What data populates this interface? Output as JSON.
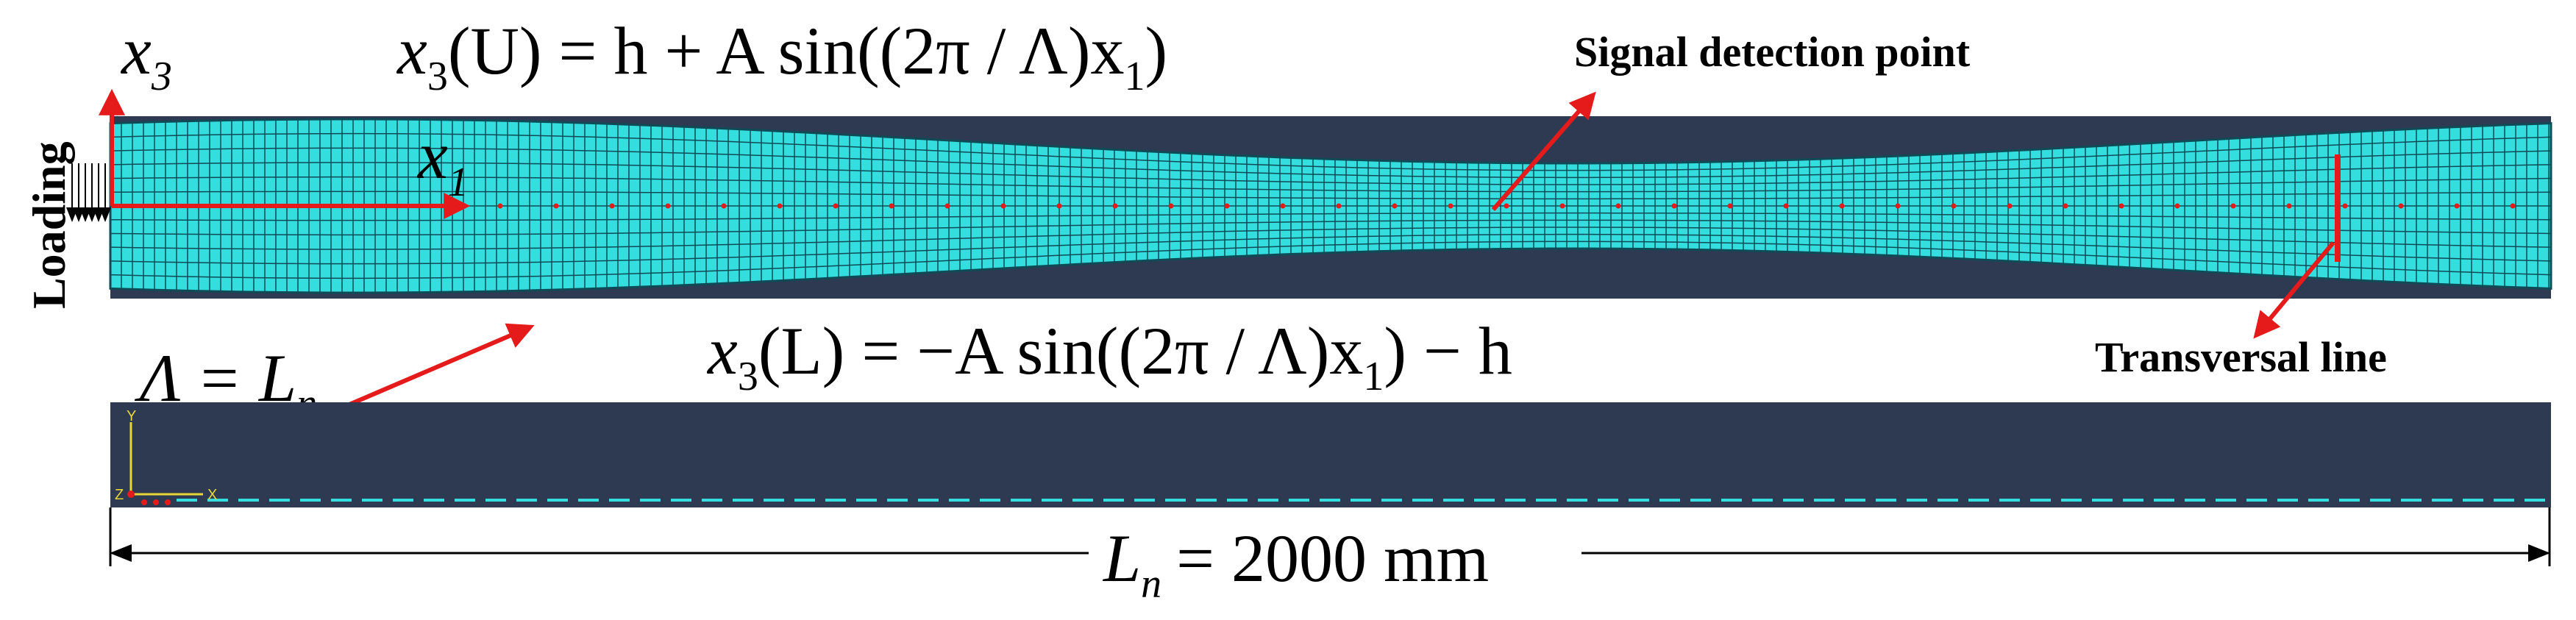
{
  "colors": {
    "background": "#ffffff",
    "panel": "#2e3a52",
    "mesh": "#35dede",
    "mesh_line": "#0f4b56",
    "annotation": "#e51b1b",
    "text": "#000000",
    "axis_triad": "#e8d636"
  },
  "labels": {
    "x3_axis": "x",
    "x3_axis_sub": "3",
    "x1_axis": "x",
    "x1_axis_sub": "1",
    "loading": "Loading",
    "signal_detection_point": "Signal detection point",
    "transversal_line": "Transversal line",
    "lambda_eq": "Λ = L",
    "lambda_eq_sub": "n",
    "upper_x": "x",
    "upper_sub": "3",
    "upper_eq": "(U) = h + A sin((2π / Λ)x",
    "upper_eq_sub": "1",
    "upper_eq_end": ")",
    "lower_x": "x",
    "lower_sub": "3",
    "lower_eq": "(L) = −A sin((2π / Λ)x",
    "lower_eq_sub": "1",
    "lower_eq_end": ") − h",
    "length_L": "L",
    "length_sub": "n",
    "length_value": "= 2000 mm"
  },
  "triad": {
    "y_label": "Y",
    "x_label": "X",
    "z_label": "Z"
  },
  "icons": {
    "loading_arrows": "down-arrow-row-icon",
    "axis_triad": "coordinate-triad-icon"
  }
}
